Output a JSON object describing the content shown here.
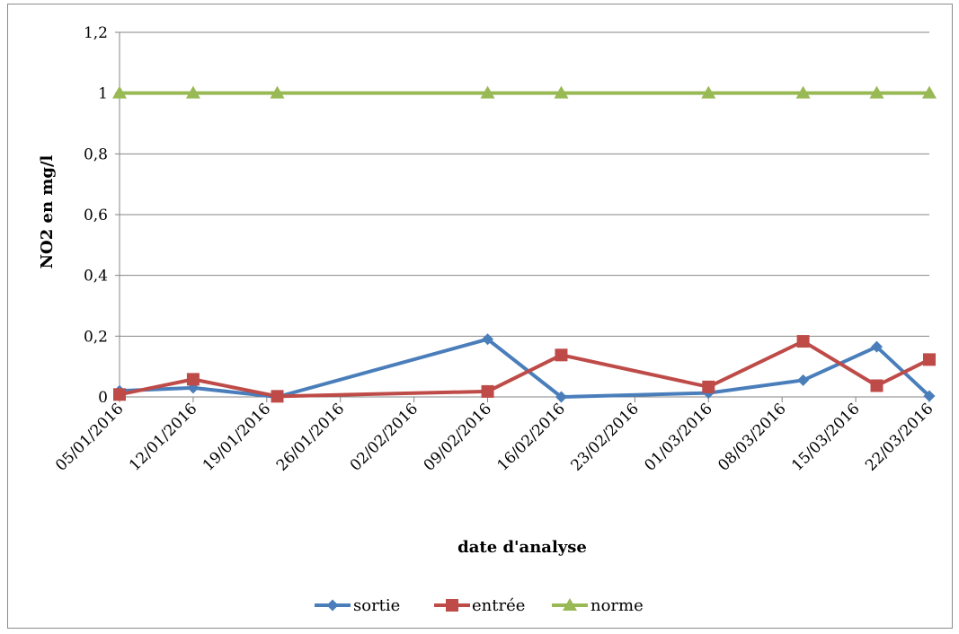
{
  "chart_data": {
    "type": "line",
    "title": "",
    "xlabel": "date d'analyse",
    "ylabel": "NO2 en mg/l",
    "ylim": [
      0,
      1.2
    ],
    "y_ticks": [
      "0",
      "0,2",
      "0,4",
      "0,6",
      "0,8",
      "1",
      "1,2"
    ],
    "x_range": [
      "2016-01-05",
      "2016-03-22"
    ],
    "x_ticks": [
      "05/01/2016",
      "12/01/2016",
      "19/01/2016",
      "26/01/2016",
      "02/02/2016",
      "09/02/2016",
      "16/02/2016",
      "23/02/2016",
      "01/03/2016",
      "08/03/2016",
      "15/03/2016",
      "22/03/2016"
    ],
    "grid": "horizontal",
    "legend_position": "bottom",
    "series": [
      {
        "name": "sortie",
        "color": "#4a7ebb",
        "marker": "diamond",
        "points": [
          {
            "x": "2016-01-05",
            "y": 0.02
          },
          {
            "x": "2016-01-12",
            "y": 0.03
          },
          {
            "x": "2016-01-20",
            "y": 0.0
          },
          {
            "x": "2016-02-09",
            "y": 0.19
          },
          {
            "x": "2016-02-16",
            "y": 0.0
          },
          {
            "x": "2016-03-01",
            "y": 0.013
          },
          {
            "x": "2016-03-10",
            "y": 0.055
          },
          {
            "x": "2016-03-17",
            "y": 0.165
          },
          {
            "x": "2016-03-22",
            "y": 0.003
          }
        ]
      },
      {
        "name": "entrée",
        "color": "#be4b48",
        "marker": "square",
        "points": [
          {
            "x": "2016-01-05",
            "y": 0.008
          },
          {
            "x": "2016-01-12",
            "y": 0.058
          },
          {
            "x": "2016-01-20",
            "y": 0.002
          },
          {
            "x": "2016-02-09",
            "y": 0.018
          },
          {
            "x": "2016-02-16",
            "y": 0.138
          },
          {
            "x": "2016-03-01",
            "y": 0.033
          },
          {
            "x": "2016-03-10",
            "y": 0.183
          },
          {
            "x": "2016-03-17",
            "y": 0.037
          },
          {
            "x": "2016-03-22",
            "y": 0.123
          }
        ]
      },
      {
        "name": "norme",
        "color": "#98b954",
        "marker": "triangle",
        "points": [
          {
            "x": "2016-01-05",
            "y": 1
          },
          {
            "x": "2016-01-12",
            "y": 1
          },
          {
            "x": "2016-01-20",
            "y": 1
          },
          {
            "x": "2016-02-09",
            "y": 1
          },
          {
            "x": "2016-02-16",
            "y": 1
          },
          {
            "x": "2016-03-01",
            "y": 1
          },
          {
            "x": "2016-03-10",
            "y": 1
          },
          {
            "x": "2016-03-17",
            "y": 1
          },
          {
            "x": "2016-03-22",
            "y": 1
          }
        ]
      }
    ]
  }
}
